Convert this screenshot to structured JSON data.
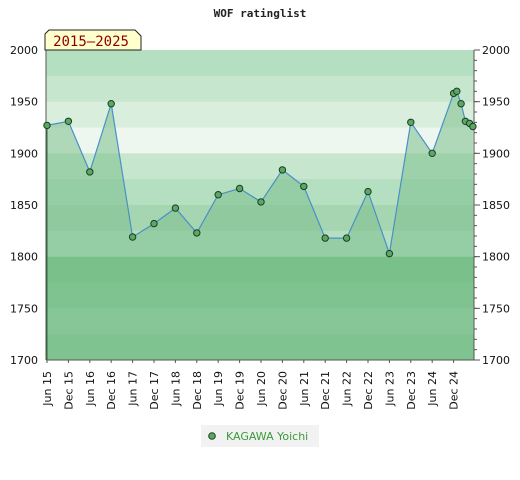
{
  "chart_data": {
    "type": "line",
    "title": "WOF ratinglist",
    "period_label": "2015–2025",
    "ylim": [
      1700,
      2000
    ],
    "yticks": [
      1700,
      1750,
      1800,
      1850,
      1900,
      1950,
      2000
    ],
    "xticks": [
      "Jun 15",
      "Dec 15",
      "Jun 16",
      "Dec 16",
      "Jun 17",
      "Dec 17",
      "Jun 18",
      "Dec 18",
      "Jun 19",
      "Dec 19",
      "Jun 20",
      "Dec 20",
      "Jun 21",
      "Dec 21",
      "Jun 22",
      "Dec 22",
      "Jun 23",
      "Dec 23",
      "Jun 24",
      "Dec 24"
    ],
    "legend_position": "bottom",
    "grid": true,
    "colors": {
      "line": "#4a90c8",
      "fill": "#7cc08c",
      "marker": "#5aa864",
      "legend_text": "#3a9a3a",
      "period_bg": "#ffffcc",
      "period_text": "#8b0000"
    },
    "series": [
      {
        "name": "KAGAWA Yoichi",
        "points": [
          {
            "x": 0.0,
            "y": 1927
          },
          {
            "x": 1.0,
            "y": 1931
          },
          {
            "x": 2.0,
            "y": 1882
          },
          {
            "x": 3.0,
            "y": 1948
          },
          {
            "x": 4.0,
            "y": 1819
          },
          {
            "x": 5.0,
            "y": 1832
          },
          {
            "x": 6.0,
            "y": 1847
          },
          {
            "x": 7.0,
            "y": 1823
          },
          {
            "x": 8.0,
            "y": 1860
          },
          {
            "x": 9.0,
            "y": 1866
          },
          {
            "x": 10.0,
            "y": 1853
          },
          {
            "x": 11.0,
            "y": 1884
          },
          {
            "x": 12.0,
            "y": 1868
          },
          {
            "x": 13.0,
            "y": 1818
          },
          {
            "x": 14.0,
            "y": 1818
          },
          {
            "x": 15.0,
            "y": 1863
          },
          {
            "x": 16.0,
            "y": 1803
          },
          {
            "x": 17.0,
            "y": 1930
          },
          {
            "x": 18.0,
            "y": 1900
          },
          {
            "x": 19.0,
            "y": 1958
          },
          {
            "x": 19.15,
            "y": 1960
          },
          {
            "x": 19.35,
            "y": 1948
          },
          {
            "x": 19.55,
            "y": 1931
          },
          {
            "x": 19.75,
            "y": 1929
          },
          {
            "x": 19.9,
            "y": 1926
          }
        ]
      }
    ]
  }
}
